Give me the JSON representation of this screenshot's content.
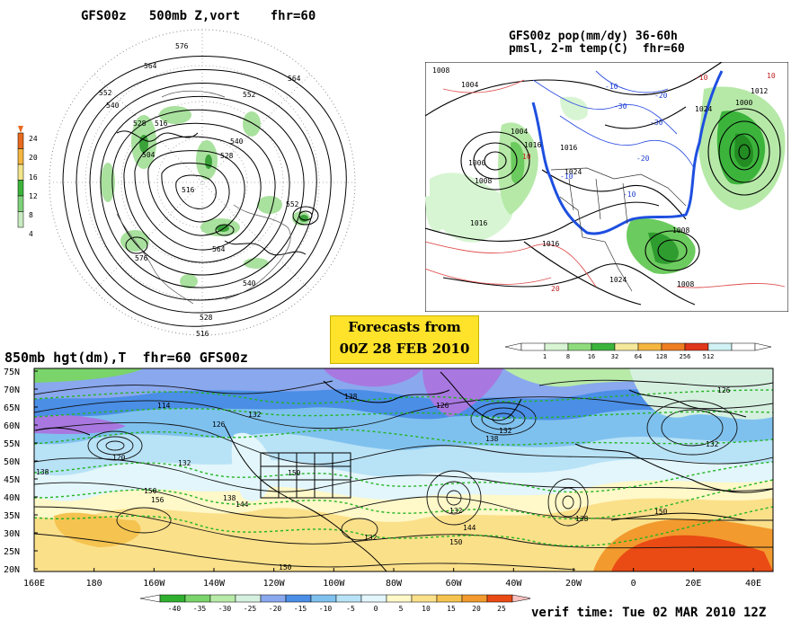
{
  "panel_500mb": {
    "title": "GFS00z   500mb Z,vort    fhr=60",
    "contour_labels": [
      {
        "v": "576"
      },
      {
        "v": "564"
      },
      {
        "v": "552"
      },
      {
        "v": "540"
      },
      {
        "v": "528"
      },
      {
        "v": "516"
      },
      {
        "v": "504"
      },
      {
        "v": "516"
      },
      {
        "v": "528"
      },
      {
        "v": "540"
      },
      {
        "v": "552"
      },
      {
        "v": "564"
      },
      {
        "v": "576"
      },
      {
        "v": "552"
      },
      {
        "v": "564"
      },
      {
        "v": "540"
      },
      {
        "v": "528"
      },
      {
        "v": "516"
      }
    ],
    "colorbar_ticks": [
      "4",
      "8",
      "12",
      "16",
      "20",
      "24"
    ],
    "colorbar_colors": [
      "#ffffff",
      "#c8ecc0",
      "#7fd07a",
      "#3cb43c",
      "#f2e58a",
      "#f5b640",
      "#e86a1e"
    ]
  },
  "panel_pop": {
    "title_line1": "GFS00z pop(mm/dy) 36-60h",
    "title_line2": "pmsl, 2-m temp(C)  fhr=60",
    "pressure_labels": [
      "1008",
      "1004",
      "1012",
      "1000",
      "1016",
      "1024",
      "1016",
      "1024",
      "1008",
      "1016",
      "1004",
      "1000",
      "1008",
      "1008",
      "1016",
      "1024"
    ],
    "temp_labels": [
      "-10",
      "-20",
      "-30",
      "-10",
      "-20",
      "-30",
      "-10",
      "10",
      "20",
      "-10",
      "10"
    ],
    "colorbar_ticks": [
      "1",
      "8",
      "16",
      "32",
      "64",
      "128",
      "256",
      "512"
    ],
    "colorbar_colors": [
      "#ffffff",
      "#d7f5d2",
      "#8fdc7d",
      "#3cb43c",
      "#f4e89a",
      "#f5b640",
      "#ef7e22",
      "#e0361a",
      "#d0f2f5",
      "#ffffff"
    ]
  },
  "forecast_box": {
    "line1": "Forecasts from",
    "line2": "00Z 28 FEB 2010"
  },
  "panel_850mb": {
    "title": "850mb hgt(dm),T  fhr=60 GFS00z",
    "lat_labels": [
      "75N",
      "70N",
      "65N",
      "60N",
      "55N",
      "50N",
      "45N",
      "40N",
      "35N",
      "30N",
      "25N",
      "20N"
    ],
    "lon_labels": [
      "160E",
      "180",
      "160W",
      "140W",
      "120W",
      "100W",
      "80W",
      "60W",
      "40W",
      "20W",
      "0",
      "20E",
      "40E"
    ],
    "height_labels": [
      "114",
      "126",
      "120",
      "132",
      "138",
      "150",
      "156",
      "144",
      "138",
      "132",
      "150",
      "138",
      "126",
      "132",
      "138",
      "132",
      "126",
      "132",
      "150",
      "144",
      "138",
      "150",
      "132",
      "150"
    ],
    "colorbar_ticks": [
      "-40",
      "-35",
      "-30",
      "-25",
      "-20",
      "-15",
      "-10",
      "-5",
      "0",
      "5",
      "10",
      "15",
      "20",
      "25"
    ],
    "colorbar_colors": [
      "#2fb02f",
      "#7ad46a",
      "#b8eaa8",
      "#d6f0e0",
      "#8aa8ee",
      "#4a8ee6",
      "#7fc1ee",
      "#b8e2f6",
      "#e2f6fb",
      "#fff8c8",
      "#fbe08a",
      "#f5c350",
      "#f29a2e",
      "#ea4a14"
    ]
  },
  "verif_time": "verif time: Tue 02 MAR 2010 12Z"
}
